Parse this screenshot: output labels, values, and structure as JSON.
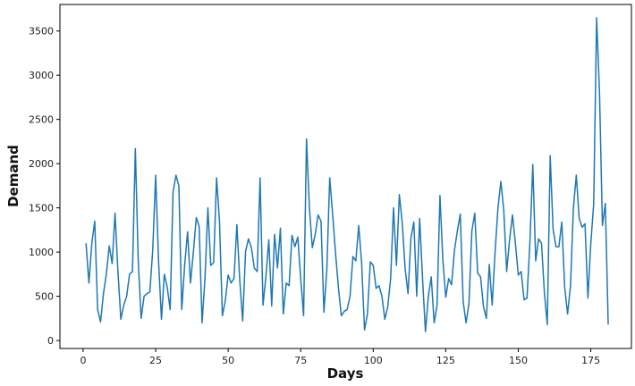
{
  "chart_data": {
    "type": "line",
    "title": "",
    "xlabel": "Days",
    "ylabel": "Demand",
    "xlim": [
      -8,
      189
    ],
    "ylim": [
      -90,
      3800
    ],
    "x_ticks": [
      0,
      25,
      50,
      75,
      100,
      125,
      150,
      175
    ],
    "y_ticks": [
      0,
      500,
      1000,
      1500,
      2000,
      2500,
      3000,
      3500
    ],
    "grid": false,
    "legend": "none",
    "line_color": "#1f77b4",
    "series": [
      {
        "x": [
          1,
          2,
          3,
          4,
          5,
          6,
          7,
          8,
          9,
          10,
          11,
          12,
          13,
          14,
          15,
          16,
          17,
          18,
          19,
          20,
          21,
          22,
          23,
          24,
          25,
          26,
          27,
          28,
          29,
          30,
          31,
          32,
          33,
          34,
          35,
          36,
          37,
          38,
          39,
          40,
          41,
          42,
          43,
          44,
          45,
          46,
          47,
          48,
          49,
          50,
          51,
          52,
          53,
          54,
          55,
          56,
          57,
          58,
          59,
          60,
          61,
          62,
          63,
          64,
          65,
          66,
          67,
          68,
          69,
          70,
          71,
          72,
          73,
          74,
          75,
          76,
          77,
          78,
          79,
          80,
          81,
          82,
          83,
          84,
          85,
          86,
          87,
          88,
          89,
          90,
          91,
          92,
          93,
          94,
          95,
          96,
          97,
          98,
          99,
          100,
          101,
          102,
          103,
          104,
          105,
          106,
          107,
          108,
          109,
          110,
          111,
          112,
          113,
          114,
          115,
          116,
          117,
          118,
          119,
          120,
          121,
          122,
          123,
          124,
          125,
          126,
          127,
          128,
          129,
          130,
          131,
          132,
          133,
          134,
          135,
          136,
          137,
          138,
          139,
          140,
          141,
          142,
          143,
          144,
          145,
          146,
          147,
          148,
          149,
          150,
          151,
          152,
          153,
          154,
          155,
          156,
          157,
          158,
          159,
          160,
          161,
          162,
          163,
          164,
          165,
          166,
          167,
          168,
          169,
          170,
          171,
          172,
          173,
          174,
          175,
          176,
          177,
          178,
          179,
          180,
          181
        ],
        "values": [
          1100,
          650,
          1100,
          1350,
          350,
          210,
          530,
          750,
          1070,
          870,
          1440,
          780,
          240,
          400,
          500,
          750,
          780,
          2170,
          900,
          250,
          500,
          530,
          550,
          1030,
          1870,
          900,
          240,
          750,
          600,
          350,
          1680,
          1870,
          1750,
          350,
          850,
          1230,
          650,
          1000,
          1390,
          1290,
          200,
          700,
          1500,
          850,
          880,
          1840,
          1350,
          280,
          450,
          740,
          650,
          700,
          1310,
          680,
          220,
          1010,
          1150,
          1050,
          820,
          780,
          1840,
          400,
          720,
          1140,
          390,
          1200,
          820,
          1270,
          300,
          650,
          620,
          1190,
          1060,
          1170,
          700,
          280,
          2280,
          1500,
          1050,
          1200,
          1420,
          1350,
          320,
          800,
          1840,
          1430,
          990,
          600,
          280,
          330,
          350,
          500,
          950,
          900,
          1300,
          880,
          120,
          300,
          890,
          850,
          590,
          620,
          500,
          240,
          380,
          700,
          1500,
          850,
          1650,
          1330,
          810,
          530,
          1160,
          1340,
          500,
          1380,
          700,
          100,
          500,
          720,
          200,
          400,
          1640,
          910,
          490,
          700,
          630,
          1020,
          1240,
          1430,
          440,
          200,
          420,
          1240,
          1440,
          760,
          720,
          380,
          250,
          860,
          400,
          1000,
          1500,
          1800,
          1470,
          780,
          1140,
          1420,
          1100,
          740,
          780,
          460,
          480,
          1100,
          1990,
          900,
          1150,
          1100,
          540,
          180,
          2090,
          1260,
          1060,
          1060,
          1340,
          600,
          300,
          620,
          1500,
          1870,
          1380,
          1280,
          1320,
          480,
          1100,
          1550,
          3650,
          2800,
          1300,
          1550,
          180
        ]
      }
    ]
  }
}
